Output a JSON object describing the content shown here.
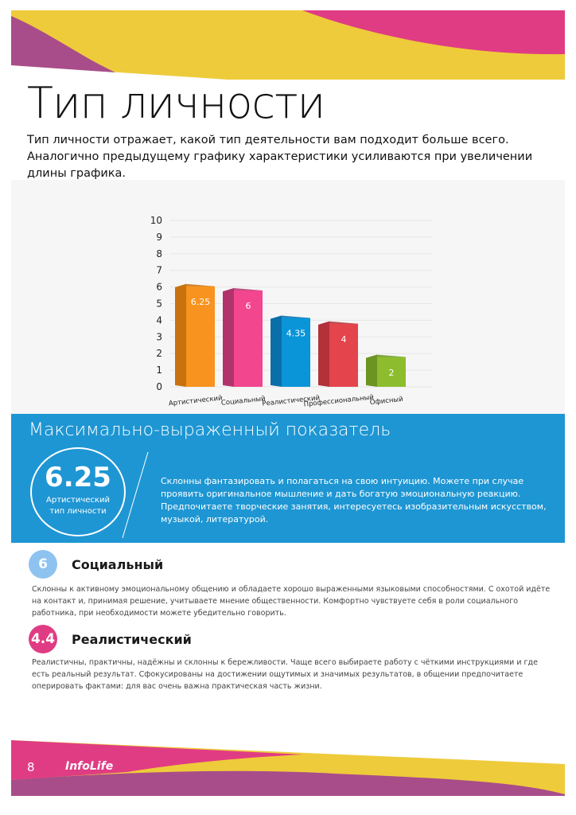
{
  "page": {
    "title": "Тип личности",
    "subtitle": "Тип личности отражает, какой тип деятельности вам подходит больше всего. Аналогично предыдущему графику характеристики усиливаются при увеличении длины графика.",
    "page_number": "8",
    "logo_text": "InfoLife"
  },
  "colors": {
    "pink": "#e03c84",
    "yellow": "#eecb3a",
    "purple": "#a84d8a",
    "blue": "#1e96d3"
  },
  "chart_data": {
    "type": "bar",
    "style": "3d",
    "categories": [
      "Артистический",
      "Социальный",
      "Реалистический",
      "Профессиональный",
      "Офисный"
    ],
    "values": [
      6.25,
      6,
      4.35,
      4,
      2
    ],
    "data_labels": [
      "6.25",
      "6",
      "4.35",
      "4",
      "2"
    ],
    "colors": [
      "#f7931e",
      "#f2468f",
      "#0a95d8",
      "#e4444c",
      "#8dbd2e"
    ],
    "side_colors": [
      "#c8710f",
      "#b2336b",
      "#0a6fa8",
      "#b33139",
      "#6c9421"
    ],
    "yticks": [
      "0",
      "1",
      "2",
      "3",
      "4",
      "5",
      "6",
      "7",
      "8",
      "9",
      "10"
    ],
    "ylim": [
      0,
      10
    ],
    "grid": true
  },
  "max_indicator": {
    "title": "Максимально-выраженный показатель",
    "value": "6.25",
    "label": "Артистический тип личности",
    "description": "Склонны фантазировать и полагаться на свою интуицию. Можете при случае проявить оригинальное мышление и дать богатую эмоциональную реакцию. Предпочитаете творческие занятия, интересуетесь изобразительным искусством, музыкой, литературой."
  },
  "sections": [
    {
      "badge": "6",
      "badge_color": "#8ec3f0",
      "title": "Социальный",
      "description": "Склонны к активному эмоциональному общению и обладаете хорошо выраженными языковыми способностями. С охотой идёте на контакт и, принимая решение, учитываете мнение общественности. Комфортно чувствуете себя в роли социального работника, при необходимости можете убедительно говорить."
    },
    {
      "badge": "4.4",
      "badge_color": "#e03c84",
      "title": "Реалистический",
      "description": "Реалистичны, практичны, надёжны и склонны к бережливости. Чаще всего выбираете работу с чёткими инструкциями и где есть реальный результат. Сфокусированы на достижении ощутимых и значимых результатов, в общении предпочитаете оперировать фактами: для вас очень важна практическая часть жизни."
    }
  ]
}
